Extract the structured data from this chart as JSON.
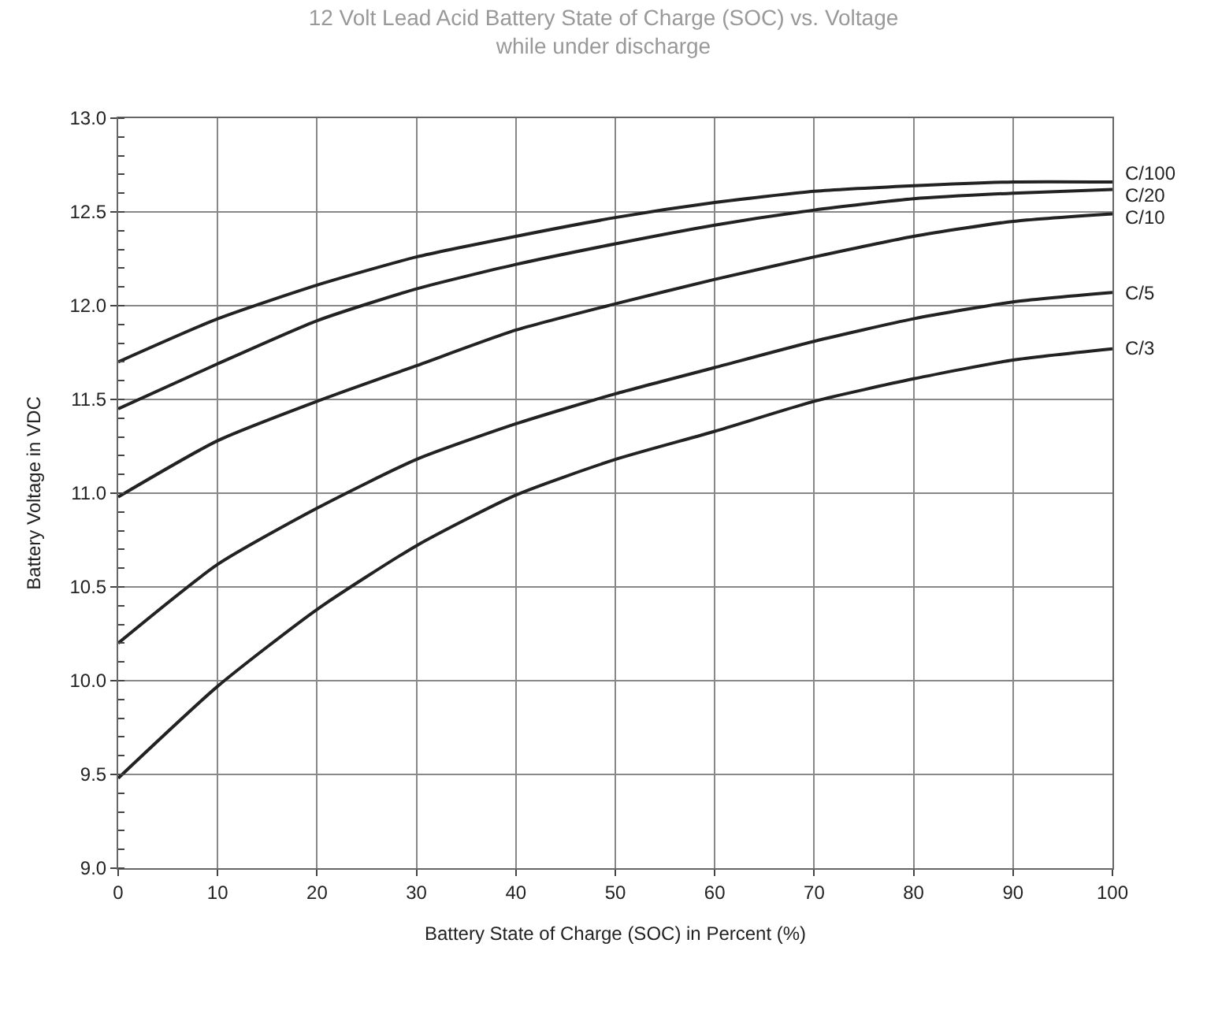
{
  "chart_data": {
    "type": "line",
    "title": "12 Volt Lead Acid Battery State of Charge (SOC) vs. Voltage",
    "subtitle": "while under discharge",
    "xlabel": "Battery State of Charge (SOC) in Percent (%)",
    "ylabel": "Battery Voltage in VDC",
    "x": [
      0,
      10,
      20,
      30,
      40,
      50,
      60,
      70,
      80,
      90,
      100
    ],
    "series": [
      {
        "name": "C/100",
        "color": "#222222",
        "values": [
          11.7,
          11.93,
          12.11,
          12.26,
          12.37,
          12.47,
          12.55,
          12.61,
          12.64,
          12.66,
          12.66
        ]
      },
      {
        "name": "C/20",
        "color": "#222222",
        "values": [
          11.45,
          11.69,
          11.92,
          12.09,
          12.22,
          12.33,
          12.43,
          12.51,
          12.57,
          12.6,
          12.62
        ]
      },
      {
        "name": "C/10",
        "color": "#222222",
        "values": [
          10.98,
          11.28,
          11.49,
          11.68,
          11.87,
          12.01,
          12.14,
          12.26,
          12.37,
          12.45,
          12.49
        ]
      },
      {
        "name": "C/5",
        "color": "#222222",
        "values": [
          10.2,
          10.62,
          10.92,
          11.18,
          11.37,
          11.53,
          11.67,
          11.81,
          11.93,
          12.02,
          12.07
        ]
      },
      {
        "name": "C/3",
        "color": "#222222",
        "values": [
          9.48,
          9.97,
          10.38,
          10.72,
          10.99,
          11.18,
          11.33,
          11.49,
          11.61,
          11.71,
          11.77
        ]
      }
    ],
    "xlim": [
      0,
      100
    ],
    "xticks": [
      0,
      10,
      20,
      30,
      40,
      50,
      60,
      70,
      80,
      90,
      100
    ],
    "ylim": [
      9.0,
      13.0
    ],
    "yticks": [
      {
        "value": 9.0,
        "label": "9.0"
      },
      {
        "value": 9.5,
        "label": "9.5"
      },
      {
        "value": 10.0,
        "label": "10.0"
      },
      {
        "value": 10.5,
        "label": "10.5"
      },
      {
        "value": 11.0,
        "label": "11.0"
      },
      {
        "value": 11.5,
        "label": "11.5"
      },
      {
        "value": 12.0,
        "label": "12.0"
      },
      {
        "value": 12.5,
        "label": "12.5"
      },
      {
        "value": 13.0,
        "label": "13.0"
      }
    ],
    "grid": true,
    "legend": false,
    "marker": "none",
    "line_style": "solid"
  }
}
